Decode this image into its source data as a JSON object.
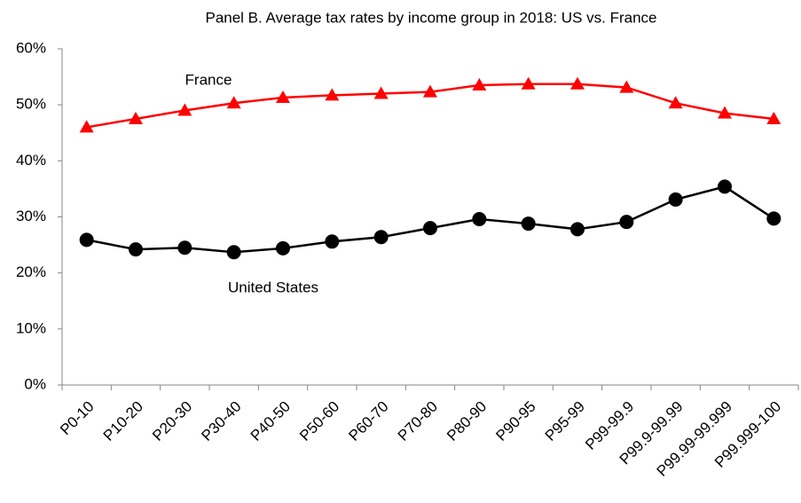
{
  "chart_data": {
    "type": "line",
    "title": "Panel B. Average tax rates by income group in 2018: US vs. France",
    "categories": [
      "P0-10",
      "P10-20",
      "P20-30",
      "P30-40",
      "P40-50",
      "P50-60",
      "P60-70",
      "P70-80",
      "P80-90",
      "P90-95",
      "P95-99",
      "P99-99.9",
      "P99.9-99.99",
      "P99.99-99.999",
      "P99.999-100"
    ],
    "series": [
      {
        "name": "France",
        "color": "#ff0000",
        "marker": "triangle",
        "values": [
          46.0,
          47.5,
          49.0,
          50.3,
          51.3,
          51.7,
          52.0,
          52.3,
          53.5,
          53.7,
          53.7,
          53.1,
          50.3,
          48.5,
          47.5
        ]
      },
      {
        "name": "United States",
        "color": "#000000",
        "marker": "circle",
        "values": [
          25.9,
          24.2,
          24.5,
          23.7,
          24.4,
          25.6,
          26.4,
          28.0,
          29.6,
          28.8,
          27.8,
          29.1,
          33.1,
          35.4,
          29.7
        ]
      }
    ],
    "ylim": [
      0,
      60
    ],
    "yticks": [
      {
        "value": 0,
        "label": "0%"
      },
      {
        "value": 10,
        "label": "10%"
      },
      {
        "value": 20,
        "label": "20%"
      },
      {
        "value": 30,
        "label": "30%"
      },
      {
        "value": 40,
        "label": "40%"
      },
      {
        "value": 50,
        "label": "50%"
      },
      {
        "value": 60,
        "label": "60%"
      }
    ],
    "grid": false
  }
}
